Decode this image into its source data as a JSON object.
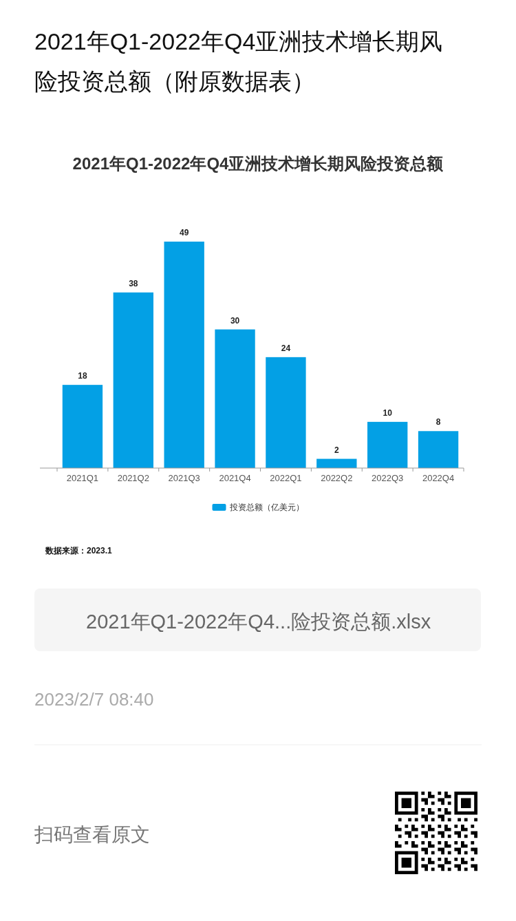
{
  "chart_data": {
    "type": "bar",
    "title": "2021年Q1-2022年Q4亚洲技术增长期风险投资总额（附原数据表）",
    "subtitle": "2021年Q1-2022年Q4亚洲技术增长期风险投资总额",
    "categories": [
      "2021Q1",
      "2021Q2",
      "2021Q3",
      "2021Q4",
      "2022Q1",
      "2022Q2",
      "2022Q3",
      "2022Q4"
    ],
    "series": [
      {
        "name": "投资总额（亿美元）",
        "color": "#03a0e5",
        "values": [
          18,
          38,
          49,
          30,
          24,
          2,
          10,
          8
        ]
      }
    ],
    "data_labels": true,
    "legend": "bottom",
    "annotations": [
      "数据来源：2023.1",
      "2021年Q1-2022年Q4...险投资总额.xlsx",
      "2023/2/7 08:40",
      "扫码查看原文"
    ]
  }
}
